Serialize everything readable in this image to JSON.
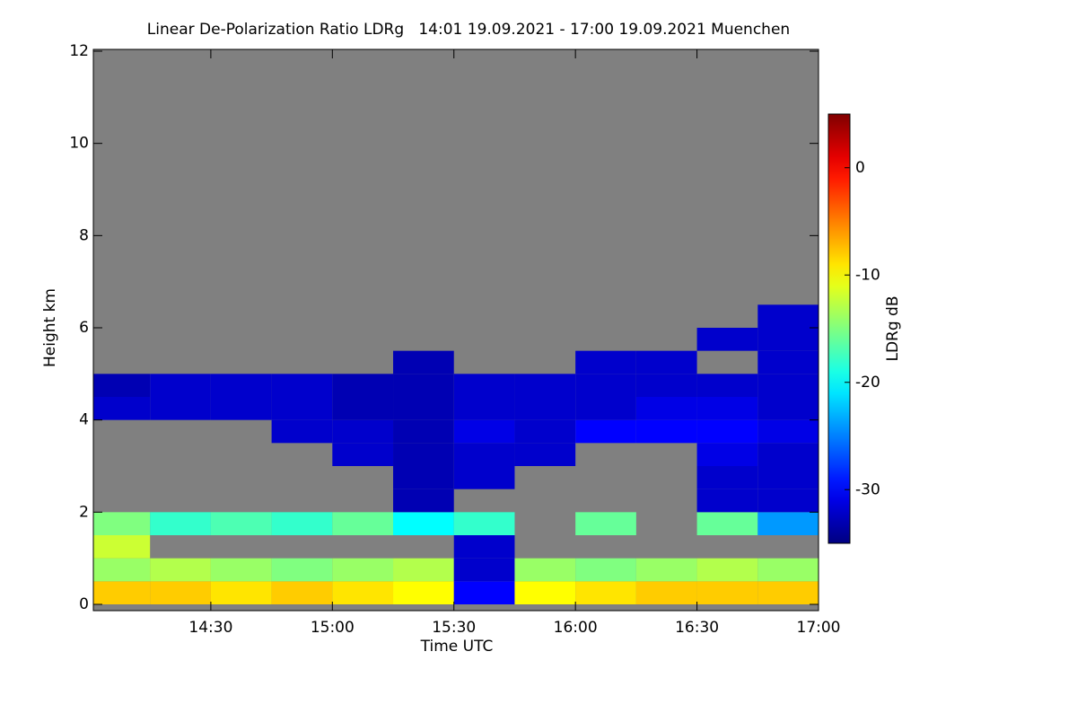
{
  "chart_data": {
    "type": "heatmap",
    "title": "Linear De-Polarization Ratio LDRg   14:01 19.09.2021 - 17:00 19.09.2021 Muenchen",
    "xlabel": "Time UTC",
    "ylabel": "Height km",
    "colorbar_label": "LDRg dB",
    "background_color": "#808080",
    "colormap": "jet",
    "x": [
      14.125,
      14.375,
      14.625,
      14.875,
      15.125,
      15.375,
      15.625,
      15.875,
      16.125,
      16.375,
      16.625,
      16.875
    ],
    "y": [
      0.25,
      0.75,
      1.25,
      1.75,
      2.25,
      2.75,
      3.25,
      3.75,
      4.25,
      4.75,
      5.25,
      5.75,
      6.25
    ],
    "values": [
      [
        -8,
        -8,
        -9,
        -8,
        -9,
        -10,
        -30,
        -10,
        -9,
        -8,
        -8,
        -8
      ],
      [
        -14,
        -13,
        -14,
        -15,
        -14,
        -13,
        -32,
        -14,
        -15,
        -14,
        -13,
        -14
      ],
      [
        -12,
        null,
        null,
        null,
        null,
        null,
        -32,
        null,
        null,
        null,
        null,
        null
      ],
      [
        -15,
        -18,
        -17,
        -18,
        -16,
        -20,
        -18,
        null,
        -16,
        null,
        -16,
        -24
      ],
      [
        null,
        null,
        null,
        null,
        null,
        -33,
        null,
        null,
        null,
        null,
        -32,
        -32
      ],
      [
        null,
        null,
        null,
        null,
        null,
        -33,
        -32,
        null,
        null,
        null,
        -32,
        -32
      ],
      [
        null,
        null,
        null,
        null,
        -32,
        -33,
        -32,
        -32,
        null,
        null,
        -31,
        -32
      ],
      [
        null,
        null,
        null,
        -32,
        -32,
        -33,
        -31,
        -32,
        -30,
        -30,
        -30,
        -31
      ],
      [
        -32,
        -32,
        -32,
        -32,
        -33,
        -33,
        -32,
        -32,
        -32,
        -31,
        -31,
        -32
      ],
      [
        -33,
        -32,
        -32,
        -32,
        -33,
        -33,
        -32,
        -32,
        -32,
        -32,
        -32,
        -32
      ],
      [
        null,
        null,
        null,
        null,
        null,
        -33,
        null,
        null,
        -32,
        -32,
        null,
        -32
      ],
      [
        null,
        null,
        null,
        null,
        null,
        null,
        null,
        null,
        null,
        null,
        -32,
        -32
      ],
      [
        null,
        null,
        null,
        null,
        null,
        null,
        null,
        null,
        null,
        null,
        null,
        -32
      ]
    ],
    "xlim": [
      14.0167,
      17.0
    ],
    "xticks": [
      {
        "value": 14.5,
        "label": "14:30"
      },
      {
        "value": 15,
        "label": "15:00"
      },
      {
        "value": 15.5,
        "label": "15:30"
      },
      {
        "value": 16,
        "label": "16:00"
      },
      {
        "value": 16.5,
        "label": "16:30"
      },
      {
        "value": 17,
        "label": "17:00"
      }
    ],
    "ylim": [
      0,
      12
    ],
    "yticks": [
      0,
      2,
      4,
      6,
      8,
      10,
      12
    ],
    "clim": [
      -35,
      5
    ],
    "cticks": [
      0,
      -10,
      -20,
      -30
    ]
  }
}
